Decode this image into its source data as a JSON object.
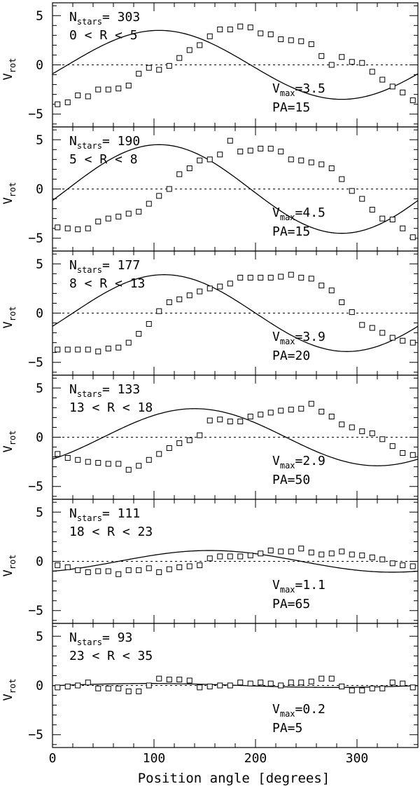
{
  "chart_data": {
    "type": "scatter",
    "xlabel": "Position angle [degrees]",
    "ylabel_main": "V",
    "ylabel_sub": "rot",
    "xlim": [
      0,
      360
    ],
    "ylim": [
      -6.3,
      6.3
    ],
    "x_ticks": [
      "0",
      "100",
      "200",
      "300"
    ],
    "y_ticks": [
      "5",
      "0",
      "−5"
    ],
    "panels": [
      {
        "n_stars": "303",
        "r_range": "0 < R < 5",
        "vmax": "3.5",
        "pa": "15",
        "model": {
          "vmax": 3.5,
          "pa": 15
        },
        "points": [
          [
            5,
            -4.0
          ],
          [
            15,
            -3.8
          ],
          [
            25,
            -3.1
          ],
          [
            35,
            -3.2
          ],
          [
            45,
            -2.5
          ],
          [
            55,
            -2.5
          ],
          [
            65,
            -2.4
          ],
          [
            75,
            -2.1
          ],
          [
            85,
            -0.9
          ],
          [
            95,
            -0.3
          ],
          [
            105,
            -0.5
          ],
          [
            115,
            -0.1
          ],
          [
            125,
            0.7
          ],
          [
            135,
            1.5
          ],
          [
            145,
            2.0
          ],
          [
            155,
            2.9
          ],
          [
            165,
            3.6
          ],
          [
            175,
            3.6
          ],
          [
            185,
            3.9
          ],
          [
            195,
            3.8
          ],
          [
            205,
            3.2
          ],
          [
            215,
            3.1
          ],
          [
            225,
            2.6
          ],
          [
            235,
            2.5
          ],
          [
            245,
            2.4
          ],
          [
            255,
            2.1
          ],
          [
            265,
            0.9
          ],
          [
            275,
            0.0
          ],
          [
            285,
            0.8
          ],
          [
            295,
            0.3
          ],
          [
            305,
            0.2
          ],
          [
            315,
            -0.7
          ],
          [
            325,
            -1.5
          ],
          [
            335,
            -2.2
          ],
          [
            345,
            -2.8
          ],
          [
            355,
            -3.6
          ]
        ]
      },
      {
        "n_stars": "190",
        "r_range": "5 < R < 8",
        "vmax": "4.5",
        "pa": "15",
        "model": {
          "vmax": 4.5,
          "pa": 15
        },
        "points": [
          [
            5,
            -3.9
          ],
          [
            15,
            -4.0
          ],
          [
            25,
            -4.1
          ],
          [
            35,
            -4.0
          ],
          [
            45,
            -3.3
          ],
          [
            55,
            -3.0
          ],
          [
            65,
            -2.8
          ],
          [
            75,
            -2.5
          ],
          [
            85,
            -2.3
          ],
          [
            95,
            -1.5
          ],
          [
            105,
            -0.7
          ],
          [
            115,
            0.0
          ],
          [
            125,
            1.5
          ],
          [
            135,
            2.1
          ],
          [
            145,
            2.9
          ],
          [
            155,
            3.0
          ],
          [
            165,
            3.5
          ],
          [
            175,
            4.9
          ],
          [
            185,
            3.8
          ],
          [
            195,
            3.9
          ],
          [
            205,
            4.1
          ],
          [
            215,
            4.1
          ],
          [
            225,
            3.8
          ],
          [
            235,
            3.0
          ],
          [
            245,
            2.9
          ],
          [
            255,
            2.7
          ],
          [
            265,
            2.5
          ],
          [
            275,
            2.1
          ],
          [
            285,
            1.0
          ],
          [
            295,
            -0.2
          ],
          [
            305,
            -1.0
          ],
          [
            315,
            -2.1
          ],
          [
            325,
            -3.0
          ],
          [
            335,
            -3.1
          ],
          [
            345,
            -4.0
          ],
          [
            355,
            -4.9
          ]
        ]
      },
      {
        "n_stars": "177",
        "r_range": "8 < R < 13",
        "vmax": "3.9",
        "pa": "20",
        "model": {
          "vmax": 3.9,
          "pa": 20
        },
        "points": [
          [
            5,
            -3.7
          ],
          [
            15,
            -3.7
          ],
          [
            25,
            -3.7
          ],
          [
            35,
            -3.7
          ],
          [
            45,
            -3.9
          ],
          [
            55,
            -3.6
          ],
          [
            65,
            -3.5
          ],
          [
            75,
            -3.0
          ],
          [
            85,
            -2.1
          ],
          [
            95,
            -1.1
          ],
          [
            105,
            0.2
          ],
          [
            115,
            1.1
          ],
          [
            125,
            1.4
          ],
          [
            135,
            1.8
          ],
          [
            145,
            2.2
          ],
          [
            155,
            2.5
          ],
          [
            165,
            2.7
          ],
          [
            175,
            3.0
          ],
          [
            185,
            3.6
          ],
          [
            195,
            3.6
          ],
          [
            205,
            3.6
          ],
          [
            215,
            3.6
          ],
          [
            225,
            3.7
          ],
          [
            235,
            3.9
          ],
          [
            245,
            3.6
          ],
          [
            255,
            3.5
          ],
          [
            265,
            2.8
          ],
          [
            275,
            2.3
          ],
          [
            285,
            1.1
          ],
          [
            295,
            0.1
          ],
          [
            305,
            -1.2
          ],
          [
            315,
            -1.5
          ],
          [
            325,
            -2.0
          ],
          [
            335,
            -2.5
          ],
          [
            345,
            -2.8
          ],
          [
            355,
            -3.0
          ]
        ]
      },
      {
        "n_stars": "133",
        "r_range": "13 < R < 18",
        "vmax": "2.9",
        "pa": "50",
        "model": {
          "vmax": 2.9,
          "pa": 50
        },
        "points": [
          [
            5,
            -1.7
          ],
          [
            15,
            -2.1
          ],
          [
            25,
            -2.3
          ],
          [
            35,
            -2.5
          ],
          [
            45,
            -2.6
          ],
          [
            55,
            -2.7
          ],
          [
            65,
            -2.7
          ],
          [
            75,
            -3.3
          ],
          [
            85,
            -2.9
          ],
          [
            95,
            -2.3
          ],
          [
            105,
            -1.7
          ],
          [
            115,
            -1.1
          ],
          [
            125,
            -0.6
          ],
          [
            135,
            -0.3
          ],
          [
            145,
            0.2
          ],
          [
            155,
            1.7
          ],
          [
            165,
            1.8
          ],
          [
            175,
            1.6
          ],
          [
            185,
            1.6
          ],
          [
            195,
            2.1
          ],
          [
            205,
            2.3
          ],
          [
            215,
            2.5
          ],
          [
            225,
            2.7
          ],
          [
            235,
            2.8
          ],
          [
            245,
            2.9
          ],
          [
            255,
            3.4
          ],
          [
            265,
            2.6
          ],
          [
            275,
            2.1
          ],
          [
            285,
            1.3
          ],
          [
            295,
            1.0
          ],
          [
            305,
            0.6
          ],
          [
            315,
            0.4
          ],
          [
            325,
            -0.2
          ],
          [
            335,
            -0.9
          ],
          [
            345,
            -1.6
          ],
          [
            355,
            -1.8
          ]
        ]
      },
      {
        "n_stars": "111",
        "r_range": "18 < R < 23",
        "vmax": "1.1",
        "pa": "65",
        "model": {
          "vmax": 1.1,
          "pa": 65
        },
        "points": [
          [
            5,
            -0.4
          ],
          [
            15,
            -0.6
          ],
          [
            25,
            -0.9
          ],
          [
            35,
            -1.1
          ],
          [
            45,
            -1.0
          ],
          [
            55,
            -1.0
          ],
          [
            65,
            -1.3
          ],
          [
            75,
            -0.9
          ],
          [
            85,
            -0.9
          ],
          [
            95,
            -0.7
          ],
          [
            105,
            -1.1
          ],
          [
            115,
            -0.8
          ],
          [
            125,
            -0.6
          ],
          [
            135,
            -0.5
          ],
          [
            145,
            -0.4
          ],
          [
            155,
            0.3
          ],
          [
            165,
            0.5
          ],
          [
            175,
            0.5
          ],
          [
            185,
            0.5
          ],
          [
            195,
            0.6
          ],
          [
            205,
            0.8
          ],
          [
            215,
            1.1
          ],
          [
            225,
            1.0
          ],
          [
            235,
            1.0
          ],
          [
            245,
            1.3
          ],
          [
            255,
            0.9
          ],
          [
            265,
            0.7
          ],
          [
            275,
            0.8
          ],
          [
            285,
            1.0
          ],
          [
            295,
            0.7
          ],
          [
            305,
            0.6
          ],
          [
            315,
            0.4
          ],
          [
            325,
            0.2
          ],
          [
            335,
            -0.2
          ],
          [
            345,
            -0.4
          ],
          [
            355,
            -0.5
          ]
        ]
      },
      {
        "n_stars": "93",
        "r_range": "23 < R < 35",
        "vmax": "0.2",
        "pa": "5",
        "model": {
          "vmax": 0.2,
          "pa": 5
        },
        "points": [
          [
            5,
            -0.2
          ],
          [
            15,
            -0.1
          ],
          [
            25,
            0.0
          ],
          [
            35,
            0.3
          ],
          [
            45,
            -0.3
          ],
          [
            55,
            -0.3
          ],
          [
            65,
            -0.3
          ],
          [
            75,
            -0.6
          ],
          [
            85,
            -0.6
          ],
          [
            95,
            0.0
          ],
          [
            105,
            0.7
          ],
          [
            115,
            0.6
          ],
          [
            125,
            0.6
          ],
          [
            135,
            0.5
          ],
          [
            145,
            -0.2
          ],
          [
            155,
            -0.1
          ],
          [
            165,
            0.0
          ],
          [
            175,
            0.0
          ],
          [
            185,
            0.3
          ],
          [
            195,
            0.2
          ],
          [
            205,
            0.3
          ],
          [
            215,
            0.2
          ],
          [
            225,
            0.0
          ],
          [
            235,
            0.3
          ],
          [
            245,
            0.3
          ],
          [
            255,
            0.4
          ],
          [
            265,
            0.7
          ],
          [
            275,
            0.7
          ],
          [
            285,
            -0.1
          ],
          [
            295,
            -0.5
          ],
          [
            305,
            -0.5
          ],
          [
            315,
            -0.3
          ],
          [
            325,
            -0.3
          ],
          [
            335,
            0.3
          ],
          [
            345,
            0.2
          ],
          [
            355,
            -0.2
          ]
        ]
      }
    ]
  }
}
